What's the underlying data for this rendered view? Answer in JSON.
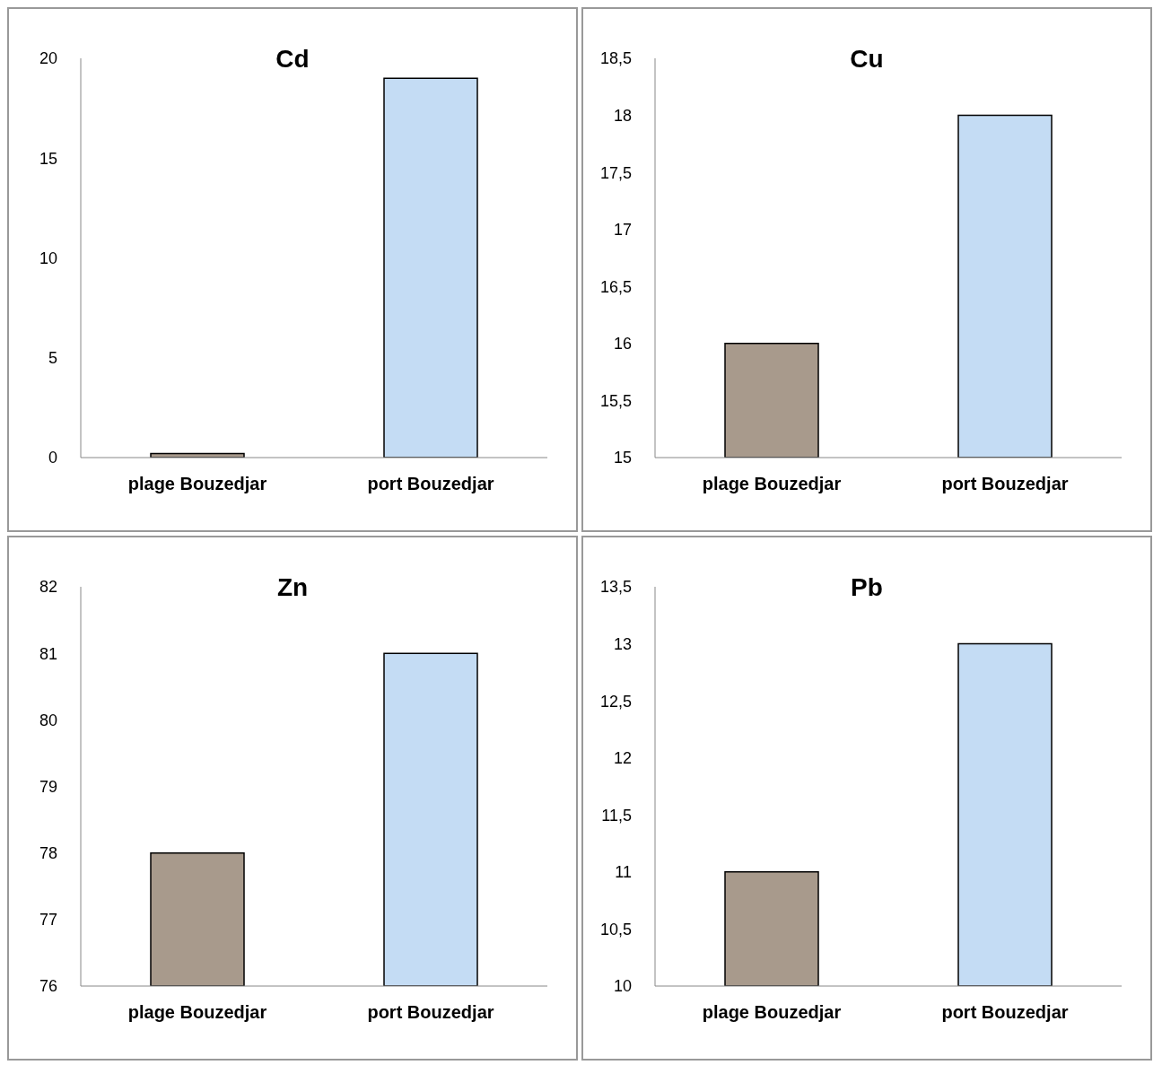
{
  "chart_data": [
    {
      "type": "bar",
      "title": "Cd",
      "categories": [
        "plage Bouzedjar",
        "port Bouzedjar"
      ],
      "values": [
        0.2,
        19
      ],
      "colors": [
        "#a89a8c",
        "#c4dcf4"
      ],
      "ylim": [
        0,
        20
      ],
      "yticks": [
        0,
        5,
        10,
        15,
        20
      ]
    },
    {
      "type": "bar",
      "title": "Cu",
      "categories": [
        "plage Bouzedjar",
        "port Bouzedjar"
      ],
      "values": [
        16,
        18
      ],
      "colors": [
        "#a89a8c",
        "#c4dcf4"
      ],
      "ylim": [
        15,
        18.5
      ],
      "yticks": [
        15,
        {
          "value": 15.5,
          "label": "15,5"
        },
        16,
        {
          "value": 16.5,
          "label": "16,5"
        },
        17,
        {
          "value": 17.5,
          "label": "17,5"
        },
        18,
        {
          "value": 18.5,
          "label": "18,5"
        }
      ]
    },
    {
      "type": "bar",
      "title": "Zn",
      "categories": [
        "plage Bouzedjar",
        "port Bouzedjar"
      ],
      "values": [
        78,
        81
      ],
      "colors": [
        "#a89a8c",
        "#c4dcf4"
      ],
      "ylim": [
        76,
        82
      ],
      "yticks": [
        76,
        77,
        78,
        79,
        80,
        81,
        82
      ]
    },
    {
      "type": "bar",
      "title": "Pb",
      "categories": [
        "plage Bouzedjar",
        "port Bouzedjar"
      ],
      "values": [
        11,
        13
      ],
      "colors": [
        "#a89a8c",
        "#c4dcf4"
      ],
      "ylim": [
        10,
        13.5
      ],
      "yticks": [
        10,
        {
          "value": 10.5,
          "label": "10,5"
        },
        11,
        {
          "value": 11.5,
          "label": "11,5"
        },
        12,
        {
          "value": 12.5,
          "label": "12,5"
        },
        13,
        {
          "value": 13.5,
          "label": "13,5"
        }
      ]
    }
  ]
}
